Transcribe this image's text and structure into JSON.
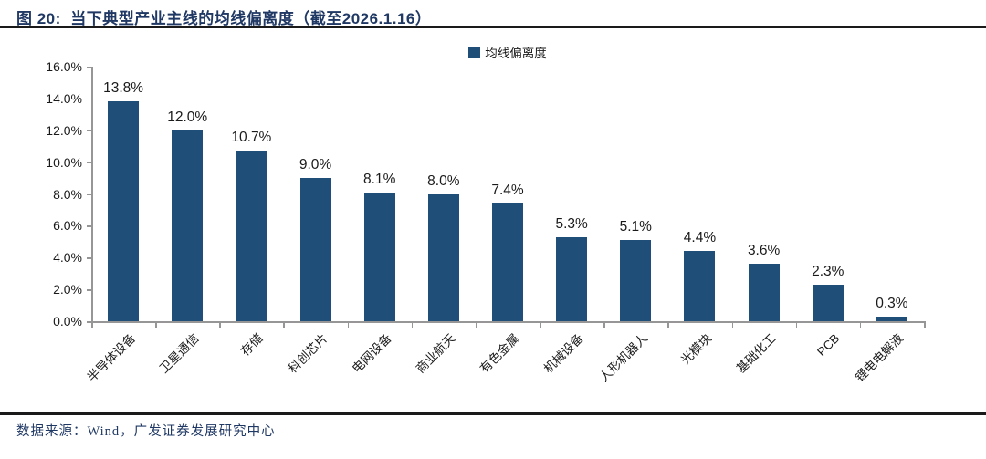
{
  "header": {
    "title": "图 20:  当下典型产业主线的均线偏离度（截至2026.1.16）"
  },
  "legend": {
    "label": "均线偏离度"
  },
  "footer": {
    "source": "数据来源：Wind，广发证券发展研究中心"
  },
  "colors": {
    "title_text": "#1F3864",
    "bar": "#1F4E79",
    "legend_swatch": "#1F4E79",
    "axis": "#969696",
    "tick_text": "#1A1A1A",
    "value_label_text": "#1A1A1A",
    "category_label_text": "#1A1A1A",
    "footer_text": "#1F3864",
    "rule": "#1A1A1A"
  },
  "chart_data": {
    "type": "bar",
    "title": "当下典型产业主线的均线偏离度（截至2026.1.16）",
    "legend_entries": [
      "均线偏离度"
    ],
    "legend_position": "top-center",
    "categories": [
      "半导体设备",
      "卫星通信",
      "存储",
      "科创芯片",
      "电网设备",
      "商业航天",
      "有色金属",
      "机械设备",
      "人形机器人",
      "光模块",
      "基础化工",
      "PCB",
      "锂电电解液"
    ],
    "values": [
      13.8,
      12.0,
      10.7,
      9.0,
      8.1,
      8.0,
      7.4,
      5.3,
      5.1,
      4.4,
      3.6,
      2.3,
      0.3
    ],
    "value_labels": [
      "13.8%",
      "12.0%",
      "10.7%",
      "9.0%",
      "8.1%",
      "8.0%",
      "7.4%",
      "5.3%",
      "5.1%",
      "4.4%",
      "3.6%",
      "2.3%",
      "0.3%"
    ],
    "unit": "%",
    "xlabel": "",
    "ylabel": "",
    "ylim": [
      0,
      16
    ],
    "y_tick_step": 2,
    "y_tick_labels": [
      "0.0%",
      "2.0%",
      "4.0%",
      "6.0%",
      "8.0%",
      "10.0%",
      "12.0%",
      "14.0%",
      "16.0%"
    ],
    "grid": false,
    "x_label_rotation_deg": 45
  }
}
